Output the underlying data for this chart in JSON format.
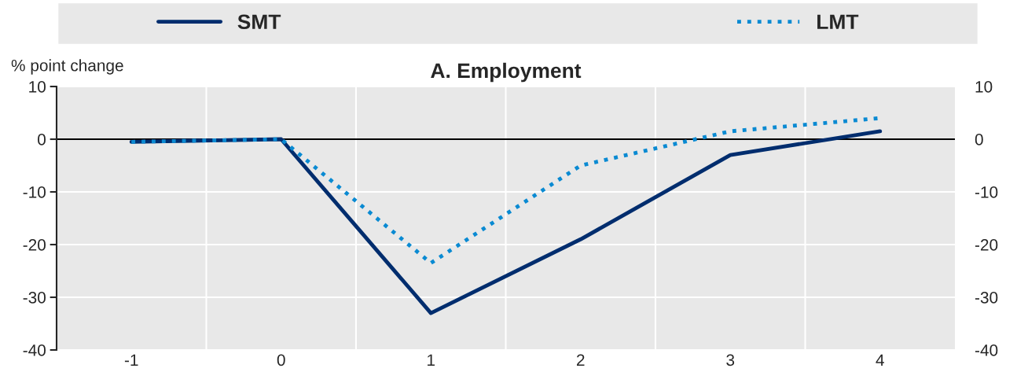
{
  "chart_data": {
    "type": "line",
    "title": "A. Employment",
    "ylabel": "% point change",
    "categories": [
      "-1",
      "0",
      "1",
      "2",
      "3",
      "4"
    ],
    "series": [
      {
        "name": "SMT",
        "color": "#002d6e",
        "line_style": "solid",
        "values": [
          -0.5,
          0,
          -33,
          -19,
          -3,
          1.5
        ]
      },
      {
        "name": "LMT",
        "color": "#0a8ad2",
        "line_style": "dotted",
        "values": [
          -0.5,
          0,
          -23.5,
          -5,
          1.5,
          4
        ]
      }
    ],
    "ylim": [
      -40,
      10
    ],
    "yticks": [
      -40,
      -30,
      -20,
      -10,
      0,
      10
    ],
    "y2lim": [
      -40,
      10
    ],
    "y2ticks": [
      -40,
      -30,
      -20,
      -10,
      0,
      10
    ],
    "ref_lines": [
      {
        "axis": "y",
        "value": 0,
        "color": "#000000"
      }
    ],
    "grid": true,
    "legend": "top",
    "marker": "none"
  }
}
